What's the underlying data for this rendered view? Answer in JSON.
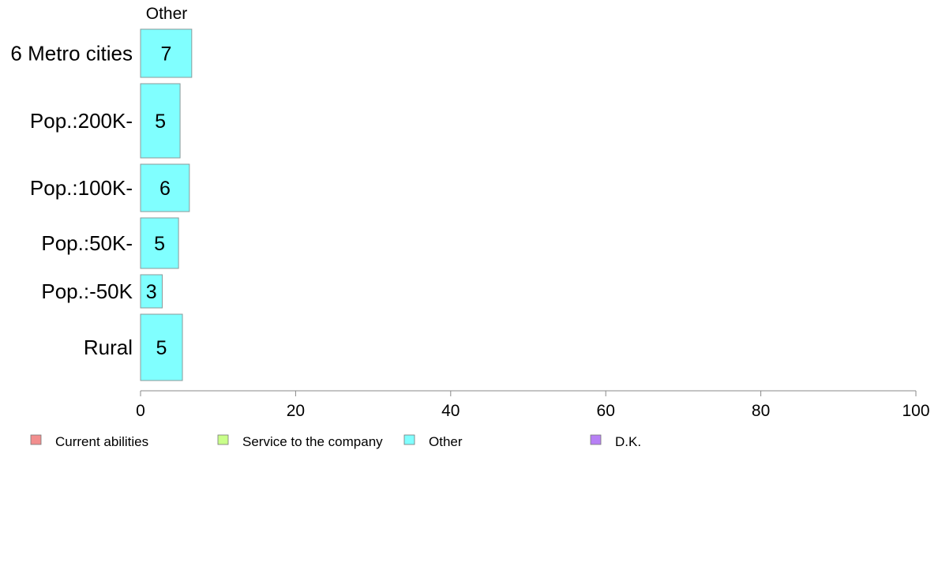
{
  "chart_data": {
    "type": "bar",
    "orientation": "horizontal",
    "stacked": true,
    "column_header": "Other",
    "categories": [
      "6 Metro cities",
      "Pop.:200K-",
      "Pop.:100K-",
      "Pop.:50K-",
      "Pop.:-50K",
      "Rural"
    ],
    "series": [
      {
        "name": "Current abilities",
        "color": "#f28e8e",
        "values": [
          null,
          null,
          null,
          null,
          null,
          null
        ]
      },
      {
        "name": "Service to the company",
        "color": "#c9ff8a",
        "values": [
          null,
          null,
          null,
          null,
          null,
          null
        ]
      },
      {
        "name": "Other",
        "color": "#80ffff",
        "values": [
          6.6,
          5.1,
          6.3,
          4.9,
          2.8,
          5.4
        ],
        "labels": [
          "7",
          "5",
          "6",
          "5",
          "3",
          "5"
        ]
      },
      {
        "name": "D.K.",
        "color": "#b780f5",
        "values": [
          null,
          null,
          null,
          null,
          null,
          null
        ]
      }
    ],
    "xlim": [
      0,
      100
    ],
    "xticks": [
      "0",
      "20",
      "40",
      "60",
      "80",
      "100"
    ],
    "legend_position": "bottom-left",
    "grid": false
  }
}
